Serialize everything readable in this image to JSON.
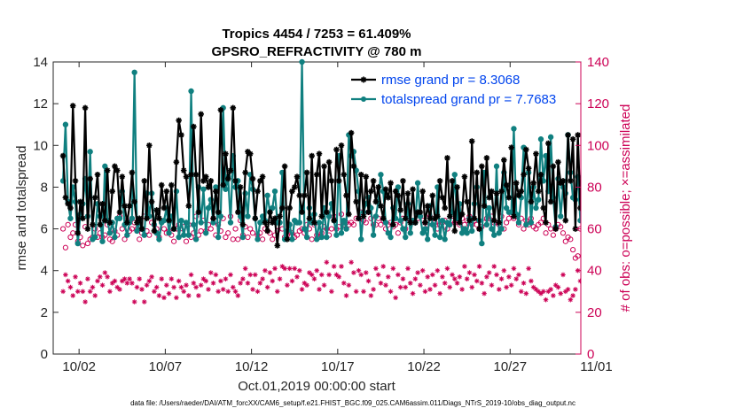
{
  "chart_data": {
    "type": "line",
    "title": "Tropics 4454 / 7253 = 61.409%",
    "subtitle": "GPSRO_REFRACTIVITY @ 780 m",
    "xlabel": "Oct.01,2019 00:00:00 start",
    "ylabel": "rmse and totalspread",
    "y2label": "# of obs: o=possible; ×=assimilated",
    "footnote": "data file: /Users/raeder/DAI/ATM_forcXX/CAM6_setup/f.e21.FHIST_BGC.f09_025.CAM6assim.011/Diags_NTrS_2019-10/obs_diag_output.nc",
    "xlim": [
      0.5,
      31.1
    ],
    "ylim": [
      0,
      14
    ],
    "y2lim": [
      0,
      140
    ],
    "xticks": [
      2,
      7,
      12,
      17,
      22,
      27,
      32
    ],
    "xtick_labels": [
      "10/02",
      "10/07",
      "10/12",
      "10/17",
      "10/22",
      "10/27",
      "11/01"
    ],
    "yticks": [
      0,
      2,
      4,
      6,
      8,
      10,
      12,
      14
    ],
    "ytick_labels": [
      "0",
      "2",
      "4",
      "6",
      "8",
      "10",
      "12",
      "14"
    ],
    "y2ticks": [
      0,
      20,
      40,
      60,
      80,
      100,
      120,
      140
    ],
    "y2tick_labels": [
      "0",
      "20",
      "40",
      "60",
      "80",
      "100",
      "120",
      "140"
    ],
    "legend_position": "top-right",
    "colors": {
      "rmse": "#000000",
      "spread": "#108080",
      "obs": "#cc0055"
    },
    "series": [
      {
        "name": "rmse grand pr = 8.3068",
        "axis": "left",
        "marker": "asterisk",
        "values": [
          9.5,
          7.5,
          7.2,
          7.0,
          11.9,
          8.3,
          5.8,
          7.3,
          6.5,
          11.8,
          6.0,
          8.4,
          6.2,
          7.5,
          8.6,
          6.2,
          7.2,
          6.4,
          8.8,
          6.3,
          7.8,
          9.0,
          8.8,
          6.8,
          8.5,
          7.1,
          6.3,
          7.1,
          8.7,
          7.3,
          6.3,
          6.5,
          6.0,
          8.3,
          6.5,
          10.0,
          7.3,
          5.9,
          6.9,
          6.5,
          8.1,
          7.0,
          7.8,
          6.4,
          8.1,
          6.0,
          9.2,
          11.2,
          10.5,
          8.8,
          8.5,
          7.1,
          8.6,
          10.9,
          8.6,
          6.8,
          11.5,
          8.3,
          8.5,
          8.0,
          8.3,
          6.5,
          7.8,
          6.8,
          11.7,
          8.1,
          9.6,
          8.4,
          8.8,
          11.8,
          8.3,
          6.8,
          8.0,
          6.2,
          8.7,
          9.7,
          9.6,
          8.4,
          6.5,
          7.8,
          8.3,
          8.5,
          6.3,
          5.9,
          6.8,
          6.3,
          6.5,
          5.2,
          6.6,
          7.0,
          9.0,
          5.5,
          7.0,
          7.8,
          8.0,
          8.5,
          7.6,
          6.8,
          7.6,
          8.7,
          6.5,
          9.5,
          6.3,
          8.6,
          9.6,
          6.6,
          9.0,
          6.8,
          9.2,
          8.3,
          6.4,
          9.8,
          8.3,
          10.0,
          8.6,
          7.6,
          6.7,
          10.6,
          9.0,
          7.3,
          6.5,
          8.6,
          6.6,
          8.5,
          6.8,
          7.8,
          8.3,
          7.3,
          8.0,
          7.1,
          6.5,
          7.9,
          7.5,
          8.2,
          6.2,
          7.8,
          7.6,
          6.9,
          8.3,
          6.5,
          7.7,
          6.3,
          7.9,
          6.3,
          6.8,
          6.8,
          7.8,
          6.3,
          7.1,
          6.5,
          7.6,
          6.5,
          6.6,
          8.3,
          7.5,
          7.0,
          9.4,
          6.6,
          8.3,
          5.9,
          8.0,
          6.3,
          6.7,
          8.5,
          7.3,
          6.4,
          10.2,
          6.5,
          8.7,
          6.0,
          9.0,
          7.1,
          9.4,
          7.5,
          7.8,
          6.4,
          7.7,
          6.3,
          7.8,
          9.3,
          8.1,
          7.5,
          9.9,
          6.6,
          8.2,
          7.6,
          7.8,
          8.6,
          9.8,
          8.9,
          7.3,
          8.2,
          9.6,
          7.8,
          8.6,
          7.0,
          6.3,
          10.1,
          7.3,
          9.0,
          6.0,
          9.2,
          8.2,
          8.3,
          6.4,
          10.5,
          8.3,
          10.3,
          6.0,
          10.5,
          7.0
        ]
      },
      {
        "name": "totalspread grand pr = 7.7683",
        "axis": "left",
        "marker": "circle-filled",
        "values": [
          8.3,
          11.0,
          7.3,
          6.5,
          8.0,
          7.3,
          5.3,
          6.7,
          7.2,
          8.4,
          6.6,
          9.7,
          5.5,
          5.6,
          7.2,
          6.6,
          5.4,
          9.0,
          6.4,
          5.8,
          6.3,
          5.6,
          6.5,
          6.5,
          7.8,
          6.2,
          5.7,
          6.3,
          6.5,
          13.5,
          5.9,
          6.3,
          6.0,
          5.7,
          7.7,
          6.6,
          7.7,
          6.2,
          5.8,
          5.5,
          6.3,
          6.4,
          7.0,
          5.8,
          6.6,
          6.0,
          7.8,
          5.6,
          6.4,
          5.7,
          6.3,
          5.7,
          12.6,
          6.2,
          5.5,
          8.0,
          6.3,
          7.9,
          5.8,
          7.0,
          7.4,
          6.3,
          8.0,
          5.6,
          6.6,
          11.8,
          7.9,
          8.5,
          6.3,
          9.5,
          8.0,
          8.3,
          6.6,
          5.6,
          7.7,
          6.6,
          8.6,
          7.9,
          6.5,
          5.5,
          6.3,
          6.6,
          6.4,
          7.6,
          6.8,
          7.0,
          7.8,
          6.3,
          6.3,
          8.7,
          5.5,
          5.9,
          6.2,
          5.5,
          6.4,
          6.3,
          6.3,
          14.0,
          6.0,
          5.6,
          7.0,
          6.3,
          6.7,
          5.5,
          6.3,
          5.6,
          7.0,
          5.6,
          6.6,
          7.2,
          6.4,
          5.7,
          9.5,
          5.8,
          6.4,
          6.0,
          10.5,
          9.5,
          9.7,
          8.8,
          7.8,
          5.5,
          6.8,
          7.2,
          7.5,
          7.0,
          5.7,
          6.6,
          7.3,
          8.6,
          7.8,
          6.3,
          5.8,
          5.6,
          7.0,
          6.5,
          8.0,
          6.4,
          6.0,
          5.6,
          7.2,
          5.8,
          6.4,
          6.3,
          8.2,
          6.6,
          5.8,
          6.0,
          5.5,
          7.1,
          6.2,
          5.7,
          8.0,
          5.6,
          6.4,
          5.5,
          6.3,
          6.2,
          6.8,
          8.6,
          6.5,
          7.2,
          5.8,
          6.0,
          5.8,
          6.5,
          5.9,
          7.2,
          8.0,
          6.4,
          5.3,
          8.7,
          6.2,
          7.0,
          6.0,
          5.7,
          9.0,
          5.8,
          6.0,
          8.7,
          7.0,
          6.8,
          6.8,
          10.8,
          6.7,
          6.3,
          7.5,
          9.9,
          6.2,
          8.7,
          6.3,
          8.0,
          7.0,
          7.4,
          10.3,
          8.3,
          9.5,
          7.8,
          10.4,
          7.5,
          6.1,
          8.4,
          6.6,
          8.0,
          7.7,
          10.5,
          8.7,
          7.5,
          7.4,
          8.5,
          6.4,
          8.6,
          10.3,
          5.4,
          5.3
        ]
      },
      {
        "name": "# of obs possible",
        "axis": "right",
        "marker": "circle-open",
        "values": [
          60,
          51,
          62,
          56,
          58,
          62,
          54,
          56,
          52,
          61,
          53,
          55,
          56,
          60,
          56,
          58,
          56,
          57,
          62,
          55,
          54,
          59,
          57,
          66,
          60,
          55,
          64,
          59,
          60,
          63,
          60,
          55,
          58,
          66,
          59,
          57,
          63,
          62,
          60,
          56,
          63,
          60,
          58,
          59,
          57,
          54,
          60,
          62,
          58,
          61,
          54,
          62,
          56,
          58,
          66,
          57,
          59,
          64,
          59,
          62,
          60,
          65,
          57,
          62,
          59,
          65,
          56,
          58,
          66,
          55,
          60,
          55,
          64,
          57,
          61,
          56,
          60,
          58,
          65,
          57,
          58,
          55,
          60,
          59,
          58,
          55,
          57,
          59,
          63,
          60,
          56,
          57,
          62,
          58,
          56,
          57,
          59,
          60,
          58,
          62,
          60,
          55,
          62,
          57,
          56,
          58,
          61,
          60,
          57,
          60,
          66,
          60,
          61,
          67,
          62,
          63,
          62,
          63,
          62,
          65,
          65,
          68,
          64,
          63,
          68,
          65,
          62,
          62,
          65,
          62,
          64,
          60,
          62,
          63,
          61,
          62,
          58,
          63,
          65,
          60,
          65,
          64,
          64,
          63,
          65,
          66,
          64,
          63,
          62,
          66,
          62,
          63,
          60,
          62,
          63,
          64,
          60,
          62,
          64,
          63,
          64,
          62,
          65,
          62,
          64,
          66,
          62,
          64,
          62,
          60,
          61,
          63,
          65,
          65,
          66,
          63,
          63,
          62,
          66,
          60,
          63,
          65,
          67,
          65,
          66,
          62,
          65,
          60,
          64,
          62,
          65,
          61,
          60,
          62,
          63,
          65,
          58,
          62,
          60,
          57,
          60,
          62,
          61,
          58,
          54,
          56,
          55,
          50,
          46,
          47,
          60,
          55,
          49
        ]
      },
      {
        "name": "# of obs assimilated",
        "axis": "right",
        "marker": "asterisk",
        "values": [
          30,
          38,
          35,
          32,
          28,
          37,
          30,
          34,
          30,
          25,
          36,
          30,
          32,
          28,
          35,
          37,
          33,
          39,
          37,
          30,
          34,
          35,
          32,
          31,
          35,
          36,
          34,
          36,
          34,
          25,
          32,
          36,
          31,
          25,
          33,
          35,
          37,
          30,
          32,
          28,
          36,
          27,
          33,
          29,
          36,
          32,
          27,
          35,
          32,
          30,
          33,
          28,
          38,
          34,
          32,
          28,
          33,
          36,
          35,
          31,
          39,
          34,
          38,
          30,
          35,
          31,
          36,
          30,
          38,
          32,
          30,
          28,
          34,
          36,
          41,
          34,
          38,
          31,
          38,
          30,
          34,
          36,
          40,
          32,
          39,
          35,
          41,
          30,
          36,
          42,
          41,
          33,
          41,
          35,
          41,
          37,
          40,
          31,
          34,
          33,
          39,
          38,
          36,
          40,
          31,
          38,
          33,
          44,
          38,
          30,
          42,
          38,
          37,
          42,
          34,
          28,
          33,
          44,
          39,
          30,
          40,
          38,
          30,
          39,
          35,
          28,
          31,
          41,
          38,
          34,
          42,
          33,
          37,
          30,
          41,
          27,
          38,
          32,
          36,
          32,
          41,
          34,
          29,
          36,
          39,
          33,
          40,
          30,
          37,
          31,
          38,
          33,
          40,
          29,
          37,
          34,
          41,
          32,
          38,
          36,
          34,
          37,
          31,
          42,
          36,
          39,
          32,
          38,
          35,
          42,
          34,
          29,
          37,
          39,
          33,
          42,
          38,
          31,
          36,
          40,
          32,
          37,
          33,
          41,
          36,
          38,
          30,
          34,
          29,
          41,
          35,
          32,
          31,
          30,
          29,
          30,
          26,
          30,
          31,
          28,
          33,
          32,
          29,
          38,
          30,
          31,
          26,
          28,
          31,
          40,
          35,
          32,
          28
        ]
      }
    ]
  }
}
